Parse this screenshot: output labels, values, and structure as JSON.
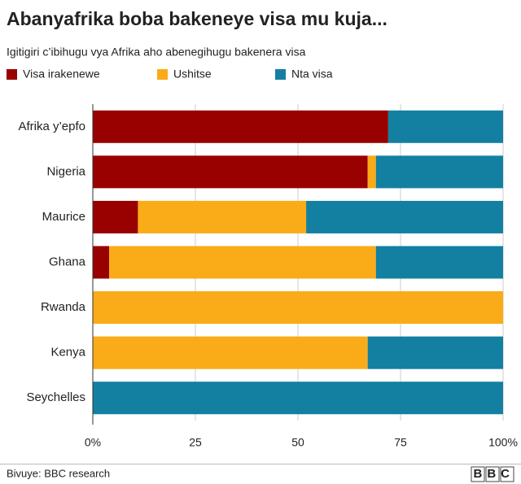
{
  "chart_data": {
    "type": "stacked-bar",
    "title": "Abanyafrika boba bakeneye visa mu kuja...",
    "subtitle": "Igitigiri c’ibihugu vya Afrika aho abenegihugu bakenera visa",
    "categories": [
      "Afrika y’epfo",
      "Nigeria",
      "Maurice",
      "Ghana",
      "Rwanda",
      "Kenya",
      "Seychelles"
    ],
    "series": [
      {
        "name": "Visa irakenewe",
        "color": "#990000",
        "values": [
          72,
          67,
          11,
          4,
          0,
          0,
          0
        ]
      },
      {
        "name": "Ushitse",
        "color": "#FAAB18",
        "values": [
          0,
          2,
          41,
          65,
          100,
          67,
          0
        ]
      },
      {
        "name": "Nta visa",
        "color": "#1380A1",
        "values": [
          28,
          31,
          48,
          31,
          0,
          33,
          100
        ]
      }
    ],
    "xlim": [
      0,
      100
    ],
    "xticks": [
      {
        "value": 0,
        "label": "0%"
      },
      25,
      50,
      75,
      {
        "value": 100,
        "label": "100%"
      }
    ],
    "grid": true,
    "source": "Bivuye: BBC research",
    "logo": "BBC"
  }
}
